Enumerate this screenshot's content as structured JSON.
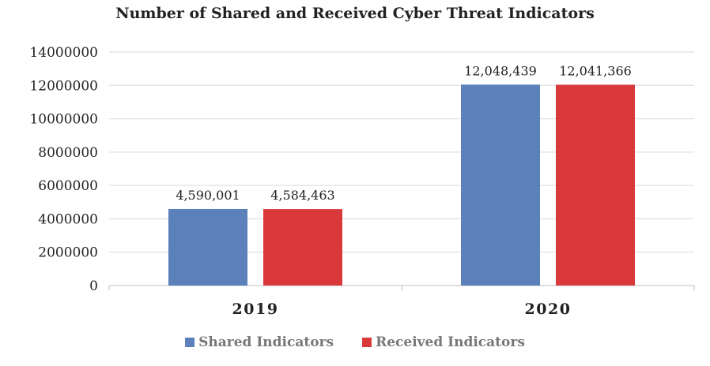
{
  "chart_data": {
    "type": "bar",
    "title": "Number of Shared and Received Cyber Threat Indicators",
    "categories": [
      "2019",
      "2020"
    ],
    "series": [
      {
        "name": "Shared Indicators",
        "color": "#5b80ba",
        "values": [
          4590001,
          12048439
        ],
        "labels": [
          "4,590,001",
          "12,048,439"
        ]
      },
      {
        "name": "Received Indicators",
        "color": "#d9393a",
        "values": [
          4584463,
          12041366
        ],
        "labels": [
          "4,584,463",
          "12,041,366"
        ]
      }
    ],
    "yticks": [
      "0",
      "2000000",
      "4000000",
      "6000000",
      "8000000",
      "10000000",
      "12000000",
      "14000000"
    ],
    "ylim": [
      0,
      14000000
    ],
    "grid": true,
    "legend_position": "bottom"
  }
}
